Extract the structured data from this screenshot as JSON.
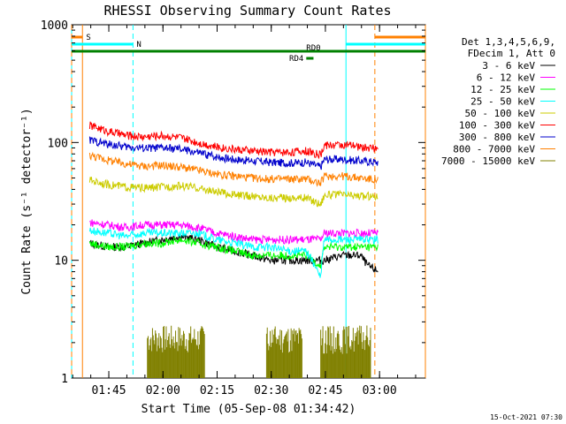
{
  "chart_data": {
    "type": "line",
    "title": "RHESSI Observing Summary Count Rates",
    "xlabel": "Start Time (05-Sep-08 01:34:42)",
    "ylabel": "Count Rate (s⁻¹ detector⁻¹)",
    "y_scale": "log",
    "ylim": [
      1,
      1000
    ],
    "xlim_minutes_from_start": [
      0,
      98
    ],
    "x_tick_labels": [
      "01:45",
      "02:00",
      "02:15",
      "02:30",
      "02:45",
      "03:00"
    ],
    "y_tick_labels": [
      "1",
      "10",
      "100",
      "1000"
    ],
    "legend_header": [
      "Det 1,3,4,5,6,9,",
      "FDecim 1, Att 0"
    ],
    "legend_position": "right",
    "series": [
      {
        "name": "3 - 6 keV",
        "color": "#000000",
        "x": [
          5,
          10,
          15,
          20,
          25,
          30,
          35,
          40,
          45,
          50,
          55,
          60,
          65,
          69,
          70,
          75,
          80,
          82,
          85
        ],
        "values": [
          14,
          13,
          13,
          14,
          15,
          16,
          15,
          13,
          12,
          11,
          10,
          10,
          10,
          10,
          10,
          11,
          11,
          9,
          8
        ]
      },
      {
        "name": "6 - 12 keV",
        "color": "#ff00ff",
        "x": [
          5,
          10,
          15,
          20,
          25,
          30,
          35,
          40,
          45,
          50,
          55,
          60,
          65,
          69,
          70,
          75,
          80,
          85
        ],
        "values": [
          21,
          20,
          19,
          20,
          20,
          20,
          19,
          17,
          16,
          15,
          15,
          15,
          15,
          15,
          17,
          17,
          17,
          17
        ]
      },
      {
        "name": "12 - 25 keV",
        "color": "#00ff00",
        "x": [
          5,
          10,
          15,
          20,
          25,
          30,
          35,
          40,
          45,
          50,
          55,
          60,
          65,
          69,
          70,
          75,
          80,
          85
        ],
        "values": [
          14,
          13,
          13,
          14,
          14,
          15,
          14,
          13,
          12,
          11,
          11,
          11,
          11,
          9,
          13,
          13,
          13,
          13
        ]
      },
      {
        "name": "25 - 50 keV",
        "color": "#00ffff",
        "x": [
          5,
          10,
          15,
          20,
          25,
          30,
          35,
          40,
          45,
          50,
          55,
          60,
          65,
          69,
          70,
          75,
          80,
          85
        ],
        "values": [
          18,
          17,
          16,
          17,
          17,
          17,
          17,
          15,
          14,
          13,
          13,
          12,
          12,
          7,
          15,
          15,
          15,
          15
        ]
      },
      {
        "name": "50 - 100 keV",
        "color": "#cccc00",
        "x": [
          5,
          10,
          15,
          20,
          25,
          30,
          35,
          40,
          45,
          50,
          55,
          60,
          65,
          69,
          70,
          75,
          80,
          85
        ],
        "values": [
          48,
          44,
          42,
          41,
          42,
          43,
          41,
          38,
          36,
          35,
          34,
          34,
          34,
          30,
          36,
          36,
          35,
          35
        ]
      },
      {
        "name": "100 - 300 keV",
        "color": "#ff0000",
        "x": [
          5,
          10,
          15,
          20,
          25,
          30,
          35,
          40,
          45,
          50,
          55,
          60,
          65,
          69,
          70,
          75,
          80,
          85
        ],
        "values": [
          140,
          125,
          115,
          112,
          115,
          110,
          100,
          92,
          88,
          85,
          83,
          83,
          85,
          78,
          95,
          96,
          92,
          88
        ]
      },
      {
        "name": "300 - 800 keV",
        "color": "#0000cc",
        "x": [
          5,
          10,
          15,
          20,
          25,
          30,
          35,
          40,
          45,
          50,
          55,
          60,
          65,
          69,
          70,
          75,
          80,
          85
        ],
        "values": [
          105,
          97,
          92,
          90,
          90,
          88,
          82,
          76,
          72,
          70,
          68,
          67,
          68,
          62,
          72,
          72,
          70,
          68
        ]
      },
      {
        "name": "800 - 7000 keV",
        "color": "#ff8000",
        "x": [
          5,
          10,
          15,
          20,
          25,
          30,
          35,
          40,
          45,
          50,
          55,
          60,
          65,
          69,
          70,
          75,
          80,
          85
        ],
        "values": [
          78,
          71,
          66,
          63,
          64,
          62,
          58,
          54,
          52,
          50,
          49,
          49,
          49,
          45,
          52,
          52,
          50,
          48
        ]
      },
      {
        "name": "7000 - 15000 keV",
        "color": "#808000",
        "x": [
          21,
          21,
          37,
          37,
          54,
          54,
          64,
          64,
          69,
          69,
          83,
          83
        ],
        "values": [
          1,
          2,
          2,
          1,
          1,
          2,
          2,
          1,
          1,
          2,
          2,
          1
        ]
      }
    ],
    "annotations": [
      {
        "text": "S",
        "color": "#ff8000",
        "start": 0,
        "end": 0
      },
      {
        "text": "N",
        "color": "#00ffff",
        "start": 0,
        "end": 17
      },
      {
        "text": "RD0",
        "color": "#008000",
        "start": 65,
        "end": 76
      },
      {
        "text": "RD4",
        "color": "#008000",
        "start": 65,
        "end": 67
      }
    ],
    "night_intervals": [
      [
        0,
        17
      ],
      [
        76,
        98
      ]
    ],
    "saa_intervals": [
      [
        0,
        3
      ],
      [
        84,
        98
      ]
    ],
    "timestamp": "15-Oct-2021 07:30"
  }
}
